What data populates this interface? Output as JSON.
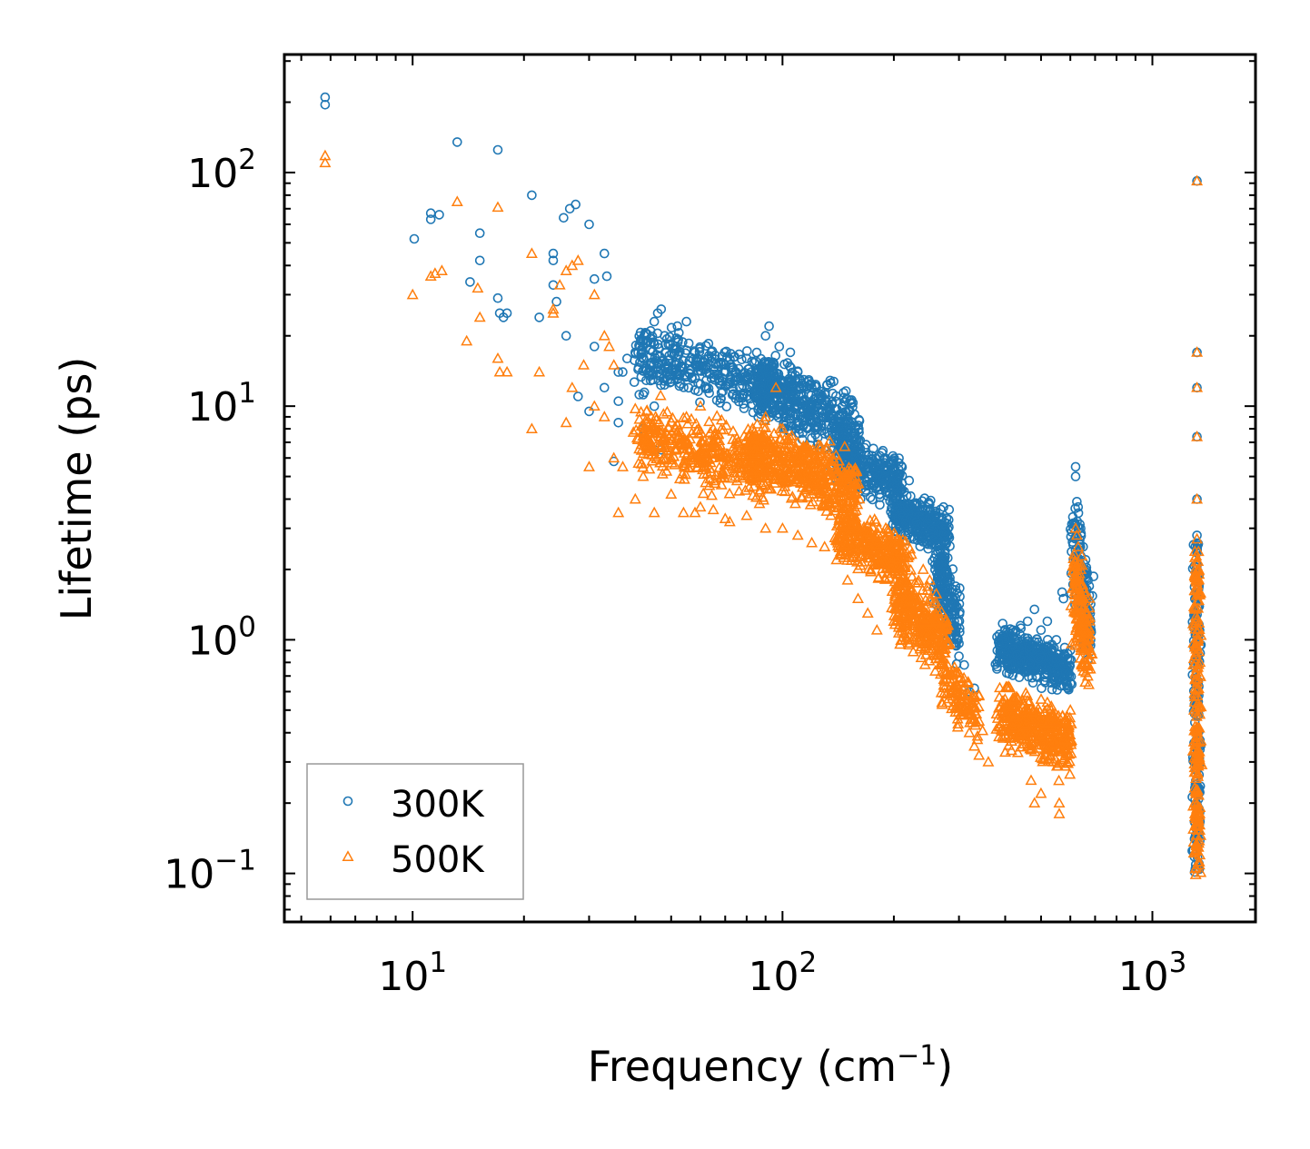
{
  "chart_data": {
    "type": "scatter",
    "xlabel": "Frequency (cm",
    "xlabel_sup": "−1",
    "xlabel_end": ")",
    "ylabel": "Lifetime (ps)",
    "xscale": "log",
    "yscale": "log",
    "xlim": [
      4.5,
      1900
    ],
    "ylim": [
      0.062,
      320
    ],
    "x_ticks": [
      {
        "value": 10,
        "base": "10",
        "exp": "1"
      },
      {
        "value": 100,
        "base": "10",
        "exp": "2"
      },
      {
        "value": 1000,
        "base": "10",
        "exp": "3"
      }
    ],
    "y_ticks": [
      {
        "value": 0.1,
        "base": "10",
        "exp": "−1"
      },
      {
        "value": 1,
        "base": "10",
        "exp": "0"
      },
      {
        "value": 10,
        "base": "10",
        "exp": "1"
      },
      {
        "value": 100,
        "base": "10",
        "exp": "2"
      }
    ],
    "legend": {
      "position": "lower-left"
    },
    "series": [
      {
        "name": "300K",
        "marker": "circle",
        "color": "#1f77b4",
        "points": [
          [
            5.8,
            210
          ],
          [
            5.8,
            195
          ],
          [
            13.2,
            135
          ],
          [
            17,
            125
          ],
          [
            21,
            80
          ],
          [
            11.2,
            67
          ],
          [
            11.2,
            63
          ],
          [
            11.8,
            66
          ],
          [
            10.1,
            52
          ],
          [
            15.2,
            55
          ],
          [
            15.2,
            42
          ],
          [
            14.3,
            34
          ],
          [
            17,
            29
          ],
          [
            17.2,
            25
          ],
          [
            18,
            25
          ],
          [
            17.6,
            24
          ],
          [
            24,
            45
          ],
          [
            24,
            42
          ],
          [
            25.6,
            64
          ],
          [
            26.6,
            70
          ],
          [
            27.6,
            73
          ],
          [
            30,
            60
          ],
          [
            33,
            45
          ],
          [
            33.5,
            36
          ],
          [
            31,
            35
          ],
          [
            24,
            33
          ],
          [
            24.5,
            28
          ],
          [
            22,
            24
          ],
          [
            26,
            20
          ],
          [
            31,
            18
          ],
          [
            38,
            16
          ],
          [
            40,
            17
          ],
          [
            37,
            14
          ],
          [
            36,
            10.5
          ],
          [
            41,
            11.2
          ],
          [
            42,
            11.2
          ],
          [
            43,
            19
          ],
          [
            44,
            21
          ],
          [
            45,
            23
          ],
          [
            46,
            25
          ],
          [
            47,
            26
          ],
          [
            48,
            20
          ],
          [
            52,
            22
          ],
          [
            55,
            23
          ],
          [
            58,
            17
          ],
          [
            44,
            15
          ],
          [
            49,
            13
          ],
          [
            30,
            9.5
          ],
          [
            35,
            5.8
          ],
          [
            36,
            8.5
          ],
          [
            45,
            6.5
          ],
          [
            47,
            6.5
          ],
          [
            36,
            14
          ],
          [
            45,
            10
          ],
          [
            28,
            11
          ],
          [
            33,
            12
          ],
          [
            42,
            8
          ],
          [
            52,
            13
          ],
          [
            62,
            15
          ],
          [
            70,
            15
          ],
          [
            80,
            16
          ],
          [
            90,
            20
          ],
          [
            92,
            22
          ],
          [
            98,
            18
          ],
          [
            95,
            15
          ],
          [
            105,
            17
          ],
          [
            110,
            14
          ],
          [
            120,
            12
          ],
          [
            130,
            10
          ],
          [
            140,
            8
          ],
          [
            150,
            7
          ],
          [
            160,
            6
          ],
          [
            170,
            5
          ],
          [
            180,
            4.5
          ],
          [
            200,
            5.5
          ],
          [
            200,
            5.3
          ],
          [
            220,
            4.8
          ],
          [
            210,
            3.5
          ],
          [
            230,
            3.2
          ],
          [
            240,
            3.6
          ],
          [
            250,
            3.8
          ],
          [
            260,
            3.2
          ],
          [
            270,
            3.3
          ],
          [
            280,
            2.8
          ],
          [
            290,
            1.4
          ],
          [
            300,
            0.85
          ],
          [
            310,
            0.78
          ],
          [
            330,
            0.62
          ],
          [
            320,
            0.6
          ],
          [
            280,
            1.8
          ],
          [
            270,
            1.2
          ],
          [
            380,
            0.75
          ],
          [
            400,
            1.1
          ],
          [
            420,
            1.1
          ],
          [
            440,
            1.15
          ],
          [
            460,
            1.2
          ],
          [
            480,
            1.35
          ],
          [
            500,
            1.1
          ],
          [
            520,
            1.2
          ],
          [
            550,
            1.0
          ],
          [
            570,
            1.6
          ],
          [
            575,
            1.5
          ],
          [
            600,
            0.9
          ],
          [
            620,
            5.5
          ],
          [
            620,
            5.0
          ],
          [
            625,
            3.9
          ],
          [
            630,
            3.7
          ],
          [
            640,
            3.0
          ],
          [
            650,
            2.5
          ],
          [
            660,
            2.2
          ],
          [
            670,
            1.8
          ],
          [
            680,
            1.2
          ],
          [
            1320,
            92
          ],
          [
            1320,
            17
          ],
          [
            1320,
            12
          ],
          [
            1320,
            7.4
          ],
          [
            1320,
            4.0
          ],
          [
            1320,
            2.8
          ]
        ],
        "dense": [
          {
            "x": [
              40,
              95
            ],
            "y": [
              10,
              20
            ],
            "n": 380,
            "spread": 0.12
          },
          {
            "x": [
              85,
              160
            ],
            "y": [
              6,
              16
            ],
            "n": 480,
            "spread": 0.12
          },
          {
            "x": [
              140,
              210
            ],
            "y": [
              4,
              7
            ],
            "n": 300,
            "spread": 0.1
          },
          {
            "x": [
              200,
              280
            ],
            "y": [
              2.5,
              4
            ],
            "n": 300,
            "spread": 0.1
          },
          {
            "x": [
              260,
              300
            ],
            "y": [
              0.9,
              2.5
            ],
            "n": 180,
            "spread": 0.14
          },
          {
            "x": [
              380,
              600
            ],
            "y": [
              0.65,
              1.05
            ],
            "n": 420,
            "spread": 0.09
          },
          {
            "x": [
              610,
              680
            ],
            "y": [
              0.8,
              3.5
            ],
            "n": 160,
            "spread": 0.12
          },
          {
            "x": [
              1320,
              1320
            ],
            "y": [
              0.1,
              2.6
            ],
            "n": 200,
            "spread": 0.2
          }
        ]
      },
      {
        "name": "500K",
        "marker": "triangle",
        "color": "#ff7f0e",
        "points": [
          [
            5.8,
            118
          ],
          [
            5.8,
            110
          ],
          [
            13.2,
            75
          ],
          [
            17,
            71
          ],
          [
            21,
            45
          ],
          [
            10,
            30
          ],
          [
            11.2,
            36
          ],
          [
            11.5,
            37
          ],
          [
            12,
            38
          ],
          [
            15,
            32
          ],
          [
            14,
            19
          ],
          [
            15.2,
            24
          ],
          [
            17,
            16
          ],
          [
            17.2,
            14
          ],
          [
            18,
            14
          ],
          [
            21,
            8
          ],
          [
            22,
            14
          ],
          [
            24,
            26
          ],
          [
            24,
            25
          ],
          [
            26,
            38
          ],
          [
            27,
            40
          ],
          [
            28,
            42
          ],
          [
            25,
            33
          ],
          [
            31,
            30
          ],
          [
            33,
            20
          ],
          [
            35,
            15
          ],
          [
            34,
            18
          ],
          [
            29,
            15
          ],
          [
            27,
            12
          ],
          [
            26,
            8.5
          ],
          [
            31,
            10
          ],
          [
            33,
            9
          ],
          [
            30,
            5.5
          ],
          [
            35,
            6
          ],
          [
            36,
            3.5
          ],
          [
            37,
            5.5
          ],
          [
            40,
            4
          ],
          [
            42,
            5
          ],
          [
            45,
            3.5
          ],
          [
            50,
            4.2
          ],
          [
            54,
            3.5
          ],
          [
            58,
            3.5
          ],
          [
            60,
            3.7
          ],
          [
            65,
            3.6
          ],
          [
            70,
            3.3
          ],
          [
            72,
            3.2
          ],
          [
            80,
            3.4
          ],
          [
            90,
            3.0
          ],
          [
            100,
            3.0
          ],
          [
            110,
            2.8
          ],
          [
            120,
            2.6
          ],
          [
            130,
            2.5
          ],
          [
            140,
            2.2
          ],
          [
            150,
            1.8
          ],
          [
            160,
            1.5
          ],
          [
            170,
            1.3
          ],
          [
            180,
            1.1
          ],
          [
            200,
            1.2
          ],
          [
            210,
            1.0
          ],
          [
            220,
            0.95
          ],
          [
            240,
            2.0
          ],
          [
            250,
            1.8
          ],
          [
            260,
            1.2
          ],
          [
            280,
            0.95
          ],
          [
            300,
            0.72
          ],
          [
            310,
            0.5
          ],
          [
            320,
            0.4
          ],
          [
            340,
            0.32
          ],
          [
            330,
            0.35
          ],
          [
            360,
            0.3
          ],
          [
            400,
            0.33
          ],
          [
            420,
            0.42
          ],
          [
            440,
            0.4
          ],
          [
            460,
            0.35
          ],
          [
            470,
            0.25
          ],
          [
            480,
            0.2
          ],
          [
            500,
            0.22
          ],
          [
            520,
            0.35
          ],
          [
            540,
            0.3
          ],
          [
            560,
            0.2
          ],
          [
            560,
            0.18
          ],
          [
            580,
            0.45
          ],
          [
            600,
            0.5
          ],
          [
            620,
            3.0
          ],
          [
            625,
            2.8
          ],
          [
            630,
            2.5
          ],
          [
            640,
            2.0
          ],
          [
            650,
            1.5
          ],
          [
            660,
            1.2
          ],
          [
            670,
            1.0
          ],
          [
            680,
            0.9
          ],
          [
            96,
            12
          ],
          [
            90,
            9
          ],
          [
            100,
            8
          ],
          [
            110,
            7
          ],
          [
            45,
            8
          ],
          [
            55,
            9
          ],
          [
            60,
            10
          ],
          [
            65,
            8
          ],
          [
            50,
            6
          ],
          [
            1320,
            92
          ],
          [
            1320,
            17
          ],
          [
            1320,
            12
          ],
          [
            1320,
            7.4
          ],
          [
            1320,
            4.0
          ],
          [
            1320,
            2.7
          ]
        ],
        "dense": [
          {
            "x": [
              40,
              90
            ],
            "y": [
              4.5,
              9
            ],
            "n": 380,
            "spread": 0.14
          },
          {
            "x": [
              80,
              160
            ],
            "y": [
              3.5,
              8
            ],
            "n": 520,
            "spread": 0.12
          },
          {
            "x": [
              140,
              220
            ],
            "y": [
              1.8,
              3.5
            ],
            "n": 340,
            "spread": 0.12
          },
          {
            "x": [
              200,
              280
            ],
            "y": [
              0.8,
              1.8
            ],
            "n": 320,
            "spread": 0.14
          },
          {
            "x": [
              270,
              340
            ],
            "y": [
              0.4,
              0.8
            ],
            "n": 120,
            "spread": 0.12
          },
          {
            "x": [
              380,
              600
            ],
            "y": [
              0.3,
              0.6
            ],
            "n": 420,
            "spread": 0.12
          },
          {
            "x": [
              610,
              680
            ],
            "y": [
              0.6,
              2.5
            ],
            "n": 160,
            "spread": 0.12
          },
          {
            "x": [
              1320,
              1320
            ],
            "y": [
              0.095,
              2.4
            ],
            "n": 220,
            "spread": 0.2
          }
        ]
      }
    ]
  }
}
